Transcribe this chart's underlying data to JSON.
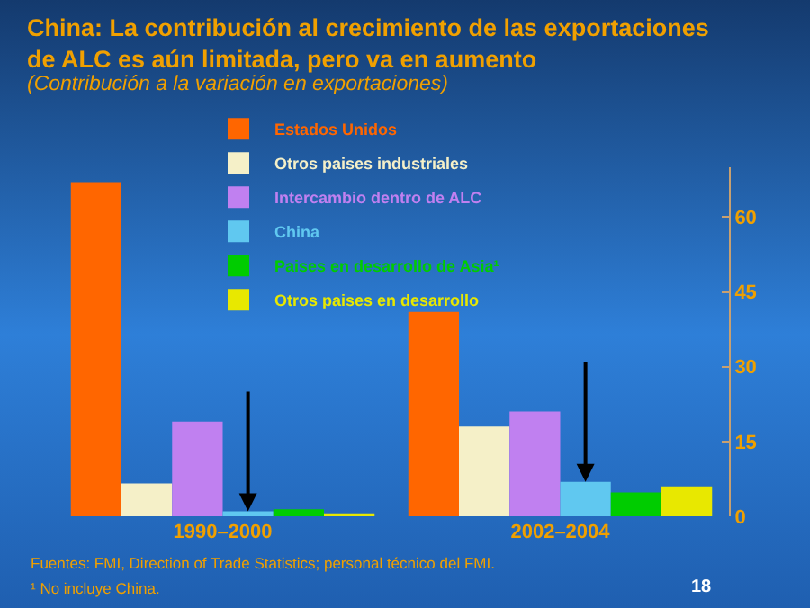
{
  "chart_data": {
    "type": "bar",
    "title": "China: La contribución al crecimiento de las exportaciones de ALC es aún limitada, pero va en aumento",
    "subtitle": "(Contribución a la variación en exportaciones)",
    "categories": [
      "1990–2000",
      "2002–2004"
    ],
    "series": [
      {
        "name": "Estados Unidos",
        "color": "#ff6600",
        "values": [
          67,
          41
        ]
      },
      {
        "name": "Otros paises industriales",
        "color": "#f5f0c8",
        "values": [
          6.6,
          18
        ]
      },
      {
        "name": "Intercambio dentro de ALC",
        "color": "#c080f0",
        "values": [
          19,
          21
        ]
      },
      {
        "name": "China",
        "color": "#60c8f0",
        "values": [
          1,
          6.9
        ]
      },
      {
        "name": "Paises en desarrollo de Asia¹",
        "color": "#00cc00",
        "values": [
          1.4,
          4.8
        ]
      },
      {
        "name": "Otros paises en desarrollo",
        "color": "#e8e800",
        "values": [
          0.6,
          6
        ]
      }
    ],
    "ylim": [
      0,
      70
    ],
    "yticks": [
      0,
      15,
      30,
      45,
      60
    ],
    "grid": false,
    "legend": "top",
    "annotations": [
      "Fuentes: FMI, Direction of Trade Statistics; personal técnico del FMI.",
      "¹ No incluye China.",
      "18"
    ]
  }
}
